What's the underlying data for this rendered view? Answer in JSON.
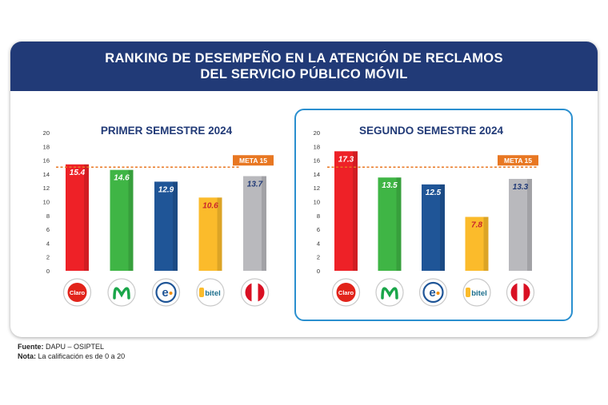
{
  "header": {
    "line1": "RANKING DE DESEMPEÑO EN LA ATENCIÓN DE RECLAMOS",
    "line2": "DEL SERVICIO PÚBLICO MÓVIL"
  },
  "colors": {
    "banner": "#213a77",
    "panel_border": "#2a8fcf",
    "target_line": "#e87722",
    "title_text": "#213a77"
  },
  "chart_data": [
    {
      "type": "bar",
      "title": "PRIMER SEMESTRE 2024",
      "categories": [
        "Claro",
        "Movistar",
        "Entel",
        "Bitel",
        "OMV"
      ],
      "values": [
        15.4,
        14.6,
        12.9,
        10.6,
        13.7
      ],
      "value_labels": [
        "15.4",
        "14.6",
        "12.9",
        "10.6",
        "13.7"
      ],
      "bar_colors": [
        "#ee2127",
        "#3fb545",
        "#1f5597",
        "#fbbb2b",
        "#b9b9bd"
      ],
      "label_colors": [
        "#ffffff",
        "#ffffff",
        "#ffffff",
        "#c9252c",
        "#213a77"
      ],
      "ylim": [
        0,
        20
      ],
      "yticks": [
        "0",
        "2",
        "4",
        "6",
        "8",
        "10",
        "12",
        "14",
        "16",
        "18",
        "20"
      ],
      "target": {
        "value": 15,
        "label": "META 15"
      },
      "grid": false
    },
    {
      "type": "bar",
      "title": "SEGUNDO SEMESTRE 2024",
      "categories": [
        "Claro",
        "Movistar",
        "Entel",
        "Bitel",
        "OMV"
      ],
      "values": [
        17.3,
        13.5,
        12.5,
        7.8,
        13.3
      ],
      "value_labels": [
        "17.3",
        "13.5",
        "12.5",
        "7.8",
        "13.3"
      ],
      "bar_colors": [
        "#ee2127",
        "#3fb545",
        "#1f5597",
        "#fbbb2b",
        "#b9b9bd"
      ],
      "label_colors": [
        "#ffffff",
        "#ffffff",
        "#ffffff",
        "#c9252c",
        "#213a77"
      ],
      "ylim": [
        0,
        20
      ],
      "yticks": [
        "0",
        "2",
        "4",
        "6",
        "8",
        "10",
        "12",
        "14",
        "16",
        "18",
        "20"
      ],
      "target": {
        "value": 15,
        "label": "META 15"
      },
      "grid": false
    }
  ],
  "logos": {
    "claro": "Claro",
    "bitel": "bitel",
    "movistar_icon": "movistar-m-icon",
    "entel_icon": "entel-e-icon",
    "omv_icon": "peru-flag-icon"
  },
  "footer": {
    "source_label": "Fuente:",
    "source_value": "DAPU – OSIPTEL",
    "note_label": "Nota:",
    "note_value": "La calificación es de 0 a 20"
  }
}
